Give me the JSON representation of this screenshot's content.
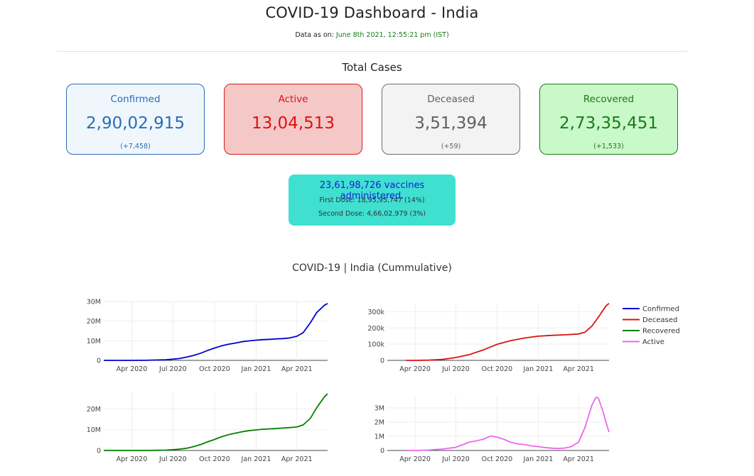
{
  "header": {
    "title": "COVID-19 Dashboard - India",
    "as_of_prefix": "Data as on: ",
    "as_of_value": "June 8th 2021, 12:55:21 pm (IST)"
  },
  "totals": {
    "section_title": "Total Cases",
    "confirmed": {
      "label": "Confirmed",
      "value": "2,90,02,915",
      "delta": "(+7,458)"
    },
    "active": {
      "label": "Active",
      "value": "13,04,513",
      "delta": ""
    },
    "deceased": {
      "label": "Deceased",
      "value": "3,51,394",
      "delta": "(+59)"
    },
    "recovered": {
      "label": "Recovered",
      "value": "2,73,35,451",
      "delta": "(+1,533)"
    }
  },
  "vaccine": {
    "main": "23,61,98,726 vaccines administered.",
    "first_dose": "First Dose: 18,95,95,747 (14%)",
    "second_dose": "Second Dose: 4,66,02,979 (3%)"
  },
  "colors": {
    "confirmed": "#0000cd",
    "deceased": "#dd1111",
    "recovered": "#008000",
    "active": "#ee66ee"
  },
  "chart_title": "COVID-19 | India (Cummulative)",
  "chart_data": [
    {
      "type": "line",
      "series": [
        {
          "name": "Confirmed",
          "x": [
            "2020-01-30",
            "2020-03-01",
            "2020-04-01",
            "2020-05-01",
            "2020-06-01",
            "2020-06-15",
            "2020-07-01",
            "2020-07-15",
            "2020-08-01",
            "2020-08-15",
            "2020-09-01",
            "2020-09-15",
            "2020-10-01",
            "2020-10-15",
            "2020-11-01",
            "2020-11-15",
            "2020-12-01",
            "2020-12-15",
            "2021-01-01",
            "2021-01-15",
            "2021-02-01",
            "2021-02-15",
            "2021-03-01",
            "2021-03-15",
            "2021-04-01",
            "2021-04-15",
            "2021-05-01",
            "2021-05-15",
            "2021-06-01",
            "2021-06-08"
          ],
          "y": [
            0,
            0,
            0.002,
            0.04,
            0.2,
            0.33,
            0.6,
            0.95,
            1.7,
            2.5,
            3.7,
            5.0,
            6.3,
            7.3,
            8.2,
            8.8,
            9.5,
            9.9,
            10.3,
            10.55,
            10.75,
            10.95,
            11.1,
            11.4,
            12.3,
            14.1,
            19.2,
            24.4,
            28.1,
            29.0
          ]
        }
      ],
      "ylim": [
        0,
        30
      ],
      "y_ticks": [
        "0",
        "10M",
        "20M",
        "30M"
      ],
      "x_ticks": [
        "Apr 2020",
        "Jul 2020",
        "Oct 2020",
        "Jan 2021",
        "Apr 2021"
      ]
    },
    {
      "type": "line",
      "series": [
        {
          "name": "Deceased",
          "x": [
            "2020-03-12",
            "2020-04-01",
            "2020-05-01",
            "2020-06-01",
            "2020-07-01",
            "2020-08-01",
            "2020-09-01",
            "2020-10-01",
            "2020-11-01",
            "2020-12-01",
            "2021-01-01",
            "2021-02-01",
            "2021-03-01",
            "2021-04-01",
            "2021-04-15",
            "2021-05-01",
            "2021-05-15",
            "2021-06-01",
            "2021-06-08"
          ],
          "y": [
            0,
            0.05,
            1.2,
            5.5,
            17.4,
            36.5,
            65.3,
            98.7,
            122.1,
            137.6,
            149.2,
            154.6,
            157.3,
            162.9,
            173.1,
            211.9,
            266.2,
            335.1,
            351.4
          ]
        }
      ],
      "ylim": [
        0,
        350
      ],
      "y_ticks": [
        "0",
        "100k",
        "200k",
        "300k"
      ],
      "x_ticks": [
        "Apr 2020",
        "Jul 2020",
        "Oct 2020",
        "Jan 2021",
        "Apr 2021"
      ]
    },
    {
      "type": "line",
      "series": [
        {
          "name": "Recovered",
          "x": [
            "2020-01-30",
            "2020-04-01",
            "2020-05-01",
            "2020-06-01",
            "2020-06-15",
            "2020-07-01",
            "2020-07-15",
            "2020-08-01",
            "2020-08-15",
            "2020-09-01",
            "2020-09-15",
            "2020-10-01",
            "2020-10-15",
            "2020-11-01",
            "2020-11-15",
            "2020-12-01",
            "2020-12-15",
            "2021-01-01",
            "2021-01-15",
            "2021-02-01",
            "2021-02-15",
            "2021-03-01",
            "2021-03-15",
            "2021-04-01",
            "2021-04-15",
            "2021-05-01",
            "2021-05-15",
            "2021-06-01",
            "2021-06-08"
          ],
          "y": [
            0,
            0,
            0.01,
            0.09,
            0.18,
            0.36,
            0.6,
            1.1,
            1.8,
            2.9,
            4.1,
            5.3,
            6.5,
            7.6,
            8.3,
            9.0,
            9.5,
            9.9,
            10.2,
            10.4,
            10.6,
            10.8,
            11.0,
            11.3,
            12.3,
            15.5,
            20.6,
            25.8,
            27.3
          ]
        }
      ],
      "ylim": [
        0,
        28
      ],
      "y_ticks": [
        "0",
        "10M",
        "20M"
      ],
      "x_ticks": [
        "Apr 2020",
        "Jul 2020",
        "Oct 2020",
        "Jan 2021",
        "Apr 2021"
      ]
    },
    {
      "type": "line",
      "series": [
        {
          "name": "Active",
          "x": [
            "2020-03-12",
            "2020-04-01",
            "2020-05-01",
            "2020-06-01",
            "2020-07-01",
            "2020-08-01",
            "2020-08-15",
            "2020-09-01",
            "2020-09-17",
            "2020-10-01",
            "2020-10-15",
            "2020-11-01",
            "2020-11-15",
            "2020-12-01",
            "2020-12-15",
            "2021-01-01",
            "2021-01-15",
            "2021-02-01",
            "2021-02-15",
            "2021-03-01",
            "2021-03-15",
            "2021-04-01",
            "2021-04-15",
            "2021-05-01",
            "2021-05-10",
            "2021-05-15",
            "2021-05-25",
            "2021-06-01",
            "2021-06-08"
          ],
          "y": [
            0,
            0.002,
            0.03,
            0.1,
            0.22,
            0.6,
            0.67,
            0.8,
            1.02,
            0.94,
            0.8,
            0.58,
            0.47,
            0.42,
            0.33,
            0.27,
            0.21,
            0.16,
            0.14,
            0.17,
            0.26,
            0.58,
            1.6,
            3.2,
            3.75,
            3.7,
            2.8,
            2.0,
            1.3
          ]
        }
      ],
      "ylim": [
        0,
        3.9
      ],
      "y_ticks": [
        "0",
        "1M",
        "2M",
        "3M"
      ],
      "x_ticks": [
        "Apr 2020",
        "Jul 2020",
        "Oct 2020",
        "Jan 2021",
        "Apr 2021"
      ]
    }
  ],
  "legend": [
    "Confirmed",
    "Deceased",
    "Recovered",
    "Active"
  ]
}
